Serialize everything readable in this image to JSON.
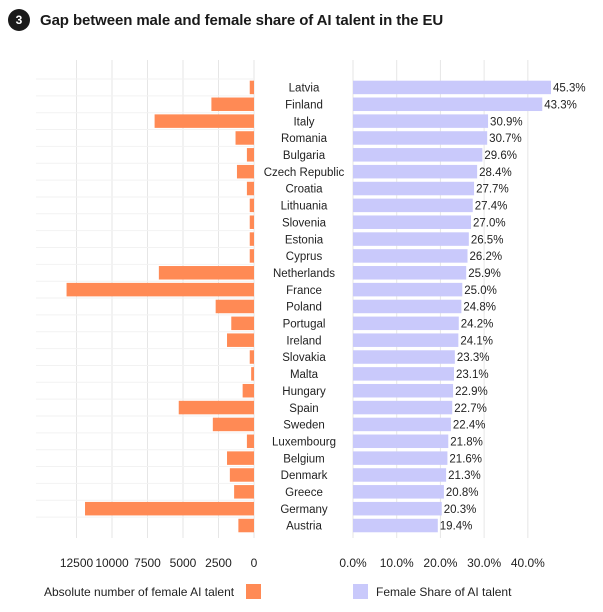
{
  "header": {
    "badge": "3",
    "title": "Gap between male and female share of AI talent in the EU"
  },
  "colors": {
    "absolute": "#FF8A55",
    "share": "#C9C9FB",
    "grid": "#E6E6E6",
    "text": "#222222"
  },
  "chart_data": {
    "type": "bar",
    "orientation": "horizontal",
    "categories": [
      "Latvia",
      "Finland",
      "Italy",
      "Romania",
      "Bulgaria",
      "Czech Republic",
      "Croatia",
      "Lithuania",
      "Slovenia",
      "Estonia",
      "Cyprus",
      "Netherlands",
      "France",
      "Poland",
      "Portugal",
      "Ireland",
      "Slovakia",
      "Malta",
      "Hungary",
      "Spain",
      "Sweden",
      "Luxembourg",
      "Belgium",
      "Denmark",
      "Greece",
      "Germany",
      "Austria"
    ],
    "series": [
      {
        "name": "Absolute number of female AI talent",
        "values": [
          300,
          3000,
          7000,
          1300,
          500,
          1200,
          500,
          300,
          300,
          300,
          300,
          6700,
          13200,
          2700,
          1600,
          1900,
          300,
          200,
          800,
          5300,
          2900,
          500,
          1900,
          1700,
          1400,
          11900,
          1100
        ],
        "xlim": [
          0,
          14000
        ],
        "ticks": [
          "12500",
          "10000",
          "7500",
          "5000",
          "2500",
          "0"
        ],
        "tick_values": [
          12500,
          10000,
          7500,
          5000,
          2500,
          0
        ]
      },
      {
        "name": "Female Share of AI talent",
        "values": [
          45.3,
          43.3,
          30.9,
          30.7,
          29.6,
          28.4,
          27.7,
          27.4,
          27.0,
          26.5,
          26.2,
          25.9,
          25.0,
          24.8,
          24.2,
          24.1,
          23.3,
          23.1,
          22.9,
          22.7,
          22.4,
          21.8,
          21.6,
          21.3,
          20.8,
          20.3,
          19.4
        ],
        "labels": [
          "45.3%",
          "43.3%",
          "30.9%",
          "30.7%",
          "29.6%",
          "28.4%",
          "27.7%",
          "27.4%",
          "27.0%",
          "26.5%",
          "26.2%",
          "25.9%",
          "25.0%",
          "24.8%",
          "24.2%",
          "24.1%",
          "23.3%",
          "23.1%",
          "22.9%",
          "22.7%",
          "22.4%",
          "21.8%",
          "21.6%",
          "21.3%",
          "20.8%",
          "20.3%",
          "19.4%"
        ],
        "xlim": [
          0,
          45.3
        ],
        "ticks": [
          "0.0%",
          "10.0%",
          "20.0%",
          "30.0%",
          "40.0%"
        ],
        "tick_values": [
          0,
          10,
          20,
          30,
          40
        ]
      }
    ],
    "grid": true,
    "legend": "bottom"
  }
}
